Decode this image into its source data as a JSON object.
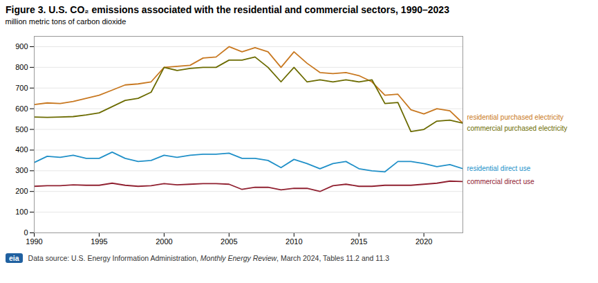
{
  "chart_data": {
    "type": "line",
    "title": "Figure 3. U.S. CO₂ emissions associated with the residential and commercial sectors, 1990–2023",
    "ylabel": "million metric tons of carbon dioxide",
    "x": [
      1990,
      1991,
      1992,
      1993,
      1994,
      1995,
      1996,
      1997,
      1998,
      1999,
      2000,
      2001,
      2002,
      2003,
      2004,
      2005,
      2006,
      2007,
      2008,
      2009,
      2010,
      2011,
      2012,
      2013,
      2014,
      2015,
      2016,
      2017,
      2018,
      2019,
      2020,
      2021,
      2022,
      2023
    ],
    "series": [
      {
        "name": "residential purchased electricity",
        "color": "#c87820",
        "values": [
          620,
          628,
          625,
          635,
          650,
          665,
          690,
          715,
          720,
          730,
          800,
          805,
          810,
          845,
          850,
          900,
          875,
          895,
          875,
          800,
          875,
          820,
          775,
          770,
          775,
          760,
          730,
          665,
          670,
          595,
          575,
          600,
          590,
          530
        ]
      },
      {
        "name": "commercial purchased electricity",
        "color": "#6b6b00",
        "values": [
          560,
          558,
          560,
          562,
          570,
          580,
          610,
          640,
          650,
          680,
          800,
          785,
          795,
          800,
          800,
          835,
          835,
          850,
          800,
          730,
          800,
          730,
          740,
          730,
          740,
          730,
          740,
          625,
          630,
          490,
          500,
          540,
          545,
          530
        ]
      },
      {
        "name": "residential direct use",
        "color": "#2090c8",
        "values": [
          340,
          370,
          365,
          375,
          360,
          360,
          390,
          360,
          345,
          350,
          375,
          365,
          375,
          380,
          380,
          385,
          360,
          360,
          350,
          315,
          355,
          335,
          310,
          335,
          345,
          310,
          300,
          295,
          345,
          345,
          335,
          320,
          330,
          310
        ]
      },
      {
        "name": "commercial direct use",
        "color": "#902030",
        "values": [
          225,
          228,
          228,
          232,
          230,
          230,
          240,
          230,
          225,
          228,
          238,
          232,
          235,
          238,
          238,
          235,
          210,
          220,
          220,
          208,
          215,
          215,
          200,
          228,
          235,
          225,
          225,
          230,
          230,
          230,
          235,
          240,
          250,
          248
        ]
      }
    ],
    "xlim": [
      1990,
      2023
    ],
    "ylim": [
      0,
      950
    ],
    "xticks": [
      1990,
      1995,
      2000,
      2005,
      2010,
      2015,
      2020
    ],
    "yticks": [
      0,
      100,
      200,
      300,
      400,
      500,
      600,
      700,
      800,
      900
    ],
    "grid": true,
    "annotations": [
      "eia"
    ],
    "footnote": [
      "Data source: U.S. Energy Information Administration, ",
      "Monthly Energy Review",
      ", March 2024, Tables 11.2 and 11.3"
    ]
  }
}
